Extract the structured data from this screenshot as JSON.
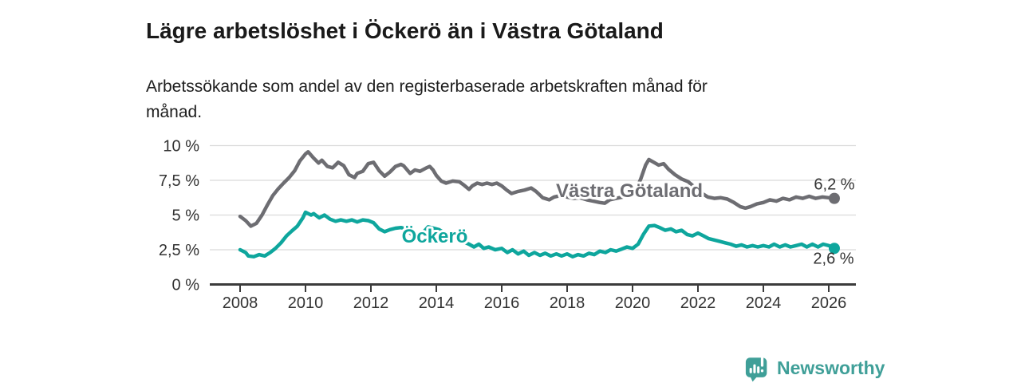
{
  "header": {
    "title": "Lägre arbetslöshet i Öckerö än i Västra Götaland",
    "subtitle": "Arbetssökande som andel av den registerbaserade arbetskraften månad för\nmånad."
  },
  "logo": {
    "text": "Newsworthy",
    "brand_color": "#3f9f98",
    "icon": "bar-chart-speech-bubble-icon"
  },
  "chart_data": {
    "type": "line",
    "unit": "%",
    "grid": "horizontal",
    "legend_position": "inline-labels",
    "xlim": [
      2007.05,
      2026.85
    ],
    "ylim": [
      0,
      10.5
    ],
    "x_ticks": [
      2008,
      2010,
      2012,
      2014,
      2016,
      2018,
      2020,
      2022,
      2024,
      2026
    ],
    "y_ticks": [
      {
        "value": 0,
        "label": "0 %"
      },
      {
        "value": 2.5,
        "label": "2,5 %"
      },
      {
        "value": 5,
        "label": "5 %"
      },
      {
        "value": 7.5,
        "label": "7,5 %"
      },
      {
        "value": 10,
        "label": "10 %"
      }
    ],
    "colors": {
      "axis": "#3b3b3b",
      "grid": "#dadada",
      "tick_text": "#333333",
      "value_text": "#333333"
    },
    "series": [
      {
        "name": "Västra Götaland",
        "color": "#6d6d72",
        "end_value": 6.2,
        "end_label": "6,2 %",
        "end_label_offset": {
          "dx": 0,
          "dy": -11
        },
        "line_label_pos": {
          "x": 789,
          "y": 247
        },
        "points": [
          [
            2008.0,
            4.9
          ],
          [
            2008.17,
            4.6
          ],
          [
            2008.33,
            4.2
          ],
          [
            2008.5,
            4.4
          ],
          [
            2008.67,
            5.0
          ],
          [
            2008.83,
            5.7
          ],
          [
            2009.0,
            6.4
          ],
          [
            2009.17,
            6.9
          ],
          [
            2009.33,
            7.3
          ],
          [
            2009.5,
            7.7
          ],
          [
            2009.67,
            8.2
          ],
          [
            2009.83,
            8.9
          ],
          [
            2010.0,
            9.4
          ],
          [
            2010.08,
            9.55
          ],
          [
            2010.25,
            9.1
          ],
          [
            2010.4,
            8.75
          ],
          [
            2010.5,
            8.95
          ],
          [
            2010.67,
            8.5
          ],
          [
            2010.83,
            8.4
          ],
          [
            2011.0,
            8.8
          ],
          [
            2011.17,
            8.55
          ],
          [
            2011.33,
            7.9
          ],
          [
            2011.5,
            7.7
          ],
          [
            2011.58,
            8.0
          ],
          [
            2011.75,
            8.15
          ],
          [
            2011.92,
            8.7
          ],
          [
            2012.08,
            8.8
          ],
          [
            2012.25,
            8.2
          ],
          [
            2012.42,
            7.8
          ],
          [
            2012.58,
            8.1
          ],
          [
            2012.75,
            8.5
          ],
          [
            2012.92,
            8.65
          ],
          [
            2013.0,
            8.55
          ],
          [
            2013.2,
            8.0
          ],
          [
            2013.35,
            8.25
          ],
          [
            2013.5,
            8.15
          ],
          [
            2013.7,
            8.4
          ],
          [
            2013.8,
            8.5
          ],
          [
            2013.9,
            8.25
          ],
          [
            2014.0,
            7.85
          ],
          [
            2014.15,
            7.45
          ],
          [
            2014.3,
            7.3
          ],
          [
            2014.5,
            7.45
          ],
          [
            2014.7,
            7.4
          ],
          [
            2014.85,
            7.15
          ],
          [
            2015.0,
            6.85
          ],
          [
            2015.1,
            7.1
          ],
          [
            2015.25,
            7.3
          ],
          [
            2015.4,
            7.2
          ],
          [
            2015.55,
            7.3
          ],
          [
            2015.7,
            7.2
          ],
          [
            2015.85,
            7.3
          ],
          [
            2016.0,
            7.1
          ],
          [
            2016.15,
            6.8
          ],
          [
            2016.3,
            6.55
          ],
          [
            2016.5,
            6.7
          ],
          [
            2016.7,
            6.8
          ],
          [
            2016.9,
            6.95
          ],
          [
            2017.05,
            6.7
          ],
          [
            2017.25,
            6.25
          ],
          [
            2017.45,
            6.1
          ],
          [
            2017.6,
            6.3
          ],
          [
            2017.8,
            6.4
          ],
          [
            2018.0,
            6.3
          ],
          [
            2018.2,
            6.2
          ],
          [
            2018.4,
            6.25
          ],
          [
            2018.6,
            6.1
          ],
          [
            2018.8,
            6.0
          ],
          [
            2019.0,
            5.9
          ],
          [
            2019.15,
            5.85
          ],
          [
            2019.3,
            6.1
          ],
          [
            2019.5,
            6.2
          ],
          [
            2019.7,
            6.3
          ],
          [
            2019.9,
            6.5
          ],
          [
            2020.1,
            6.8
          ],
          [
            2020.25,
            7.6
          ],
          [
            2020.4,
            8.6
          ],
          [
            2020.5,
            9.0
          ],
          [
            2020.65,
            8.8
          ],
          [
            2020.8,
            8.6
          ],
          [
            2020.95,
            8.7
          ],
          [
            2021.1,
            8.3
          ],
          [
            2021.3,
            7.9
          ],
          [
            2021.5,
            7.6
          ],
          [
            2021.7,
            7.4
          ],
          [
            2021.9,
            7.0
          ],
          [
            2022.1,
            6.6
          ],
          [
            2022.3,
            6.3
          ],
          [
            2022.5,
            6.2
          ],
          [
            2022.7,
            6.25
          ],
          [
            2022.9,
            6.15
          ],
          [
            2023.1,
            5.9
          ],
          [
            2023.3,
            5.6
          ],
          [
            2023.45,
            5.5
          ],
          [
            2023.6,
            5.6
          ],
          [
            2023.8,
            5.8
          ],
          [
            2024.0,
            5.9
          ],
          [
            2024.2,
            6.1
          ],
          [
            2024.4,
            6.0
          ],
          [
            2024.6,
            6.2
          ],
          [
            2024.8,
            6.1
          ],
          [
            2025.0,
            6.3
          ],
          [
            2025.2,
            6.2
          ],
          [
            2025.4,
            6.35
          ],
          [
            2025.6,
            6.2
          ],
          [
            2025.8,
            6.3
          ],
          [
            2026.0,
            6.25
          ],
          [
            2026.17,
            6.2
          ]
        ]
      },
      {
        "name": "Öckerö",
        "color": "#0ea69d",
        "end_value": 2.6,
        "end_label": "2,6 %",
        "end_label_offset": {
          "dx": -1,
          "dy": 19
        },
        "line_label_pos": {
          "x": 545,
          "y": 304
        },
        "points": [
          [
            2008.0,
            2.5
          ],
          [
            2008.17,
            2.3
          ],
          [
            2008.25,
            2.05
          ],
          [
            2008.42,
            2.0
          ],
          [
            2008.58,
            2.15
          ],
          [
            2008.75,
            2.05
          ],
          [
            2008.92,
            2.3
          ],
          [
            2009.08,
            2.6
          ],
          [
            2009.25,
            3.0
          ],
          [
            2009.42,
            3.5
          ],
          [
            2009.58,
            3.85
          ],
          [
            2009.75,
            4.2
          ],
          [
            2009.92,
            4.8
          ],
          [
            2010.0,
            5.2
          ],
          [
            2010.17,
            5.0
          ],
          [
            2010.25,
            5.1
          ],
          [
            2010.42,
            4.8
          ],
          [
            2010.58,
            5.0
          ],
          [
            2010.75,
            4.7
          ],
          [
            2010.92,
            4.55
          ],
          [
            2011.08,
            4.65
          ],
          [
            2011.25,
            4.55
          ],
          [
            2011.42,
            4.65
          ],
          [
            2011.58,
            4.5
          ],
          [
            2011.75,
            4.65
          ],
          [
            2011.92,
            4.6
          ],
          [
            2012.08,
            4.45
          ],
          [
            2012.25,
            4.0
          ],
          [
            2012.42,
            3.8
          ],
          [
            2012.58,
            3.95
          ],
          [
            2012.75,
            4.05
          ],
          [
            2012.92,
            4.1
          ],
          [
            2013.08,
            4.0
          ],
          [
            2013.25,
            3.6
          ],
          [
            2013.42,
            3.4
          ],
          [
            2013.58,
            3.7
          ],
          [
            2013.75,
            4.15
          ],
          [
            2013.92,
            4.05
          ],
          [
            2014.08,
            3.95
          ],
          [
            2014.25,
            3.7
          ],
          [
            2014.5,
            3.4
          ],
          [
            2014.75,
            3.15
          ],
          [
            2015.0,
            2.9
          ],
          [
            2015.15,
            2.7
          ],
          [
            2015.3,
            2.9
          ],
          [
            2015.45,
            2.6
          ],
          [
            2015.6,
            2.7
          ],
          [
            2015.8,
            2.5
          ],
          [
            2016.0,
            2.6
          ],
          [
            2016.17,
            2.3
          ],
          [
            2016.33,
            2.5
          ],
          [
            2016.5,
            2.2
          ],
          [
            2016.67,
            2.4
          ],
          [
            2016.83,
            2.1
          ],
          [
            2017.0,
            2.3
          ],
          [
            2017.17,
            2.1
          ],
          [
            2017.33,
            2.25
          ],
          [
            2017.5,
            2.05
          ],
          [
            2017.67,
            2.2
          ],
          [
            2017.83,
            2.05
          ],
          [
            2018.0,
            2.2
          ],
          [
            2018.17,
            2.0
          ],
          [
            2018.33,
            2.15
          ],
          [
            2018.5,
            2.05
          ],
          [
            2018.67,
            2.25
          ],
          [
            2018.83,
            2.15
          ],
          [
            2019.0,
            2.4
          ],
          [
            2019.17,
            2.3
          ],
          [
            2019.33,
            2.5
          ],
          [
            2019.5,
            2.4
          ],
          [
            2019.67,
            2.55
          ],
          [
            2019.83,
            2.7
          ],
          [
            2020.0,
            2.6
          ],
          [
            2020.17,
            2.9
          ],
          [
            2020.33,
            3.6
          ],
          [
            2020.5,
            4.2
          ],
          [
            2020.67,
            4.25
          ],
          [
            2020.83,
            4.1
          ],
          [
            2021.0,
            3.9
          ],
          [
            2021.17,
            4.0
          ],
          [
            2021.33,
            3.8
          ],
          [
            2021.5,
            3.9
          ],
          [
            2021.67,
            3.6
          ],
          [
            2021.83,
            3.5
          ],
          [
            2022.0,
            3.7
          ],
          [
            2022.17,
            3.5
          ],
          [
            2022.33,
            3.3
          ],
          [
            2022.5,
            3.2
          ],
          [
            2022.67,
            3.1
          ],
          [
            2022.83,
            3.0
          ],
          [
            2023.0,
            2.9
          ],
          [
            2023.17,
            2.75
          ],
          [
            2023.33,
            2.85
          ],
          [
            2023.5,
            2.7
          ],
          [
            2023.67,
            2.8
          ],
          [
            2023.83,
            2.7
          ],
          [
            2024.0,
            2.8
          ],
          [
            2024.17,
            2.7
          ],
          [
            2024.33,
            2.9
          ],
          [
            2024.5,
            2.7
          ],
          [
            2024.67,
            2.85
          ],
          [
            2024.83,
            2.7
          ],
          [
            2025.0,
            2.8
          ],
          [
            2025.17,
            2.9
          ],
          [
            2025.33,
            2.7
          ],
          [
            2025.5,
            2.9
          ],
          [
            2025.67,
            2.7
          ],
          [
            2025.83,
            2.9
          ],
          [
            2026.0,
            2.8
          ],
          [
            2026.17,
            2.6
          ]
        ]
      }
    ]
  }
}
